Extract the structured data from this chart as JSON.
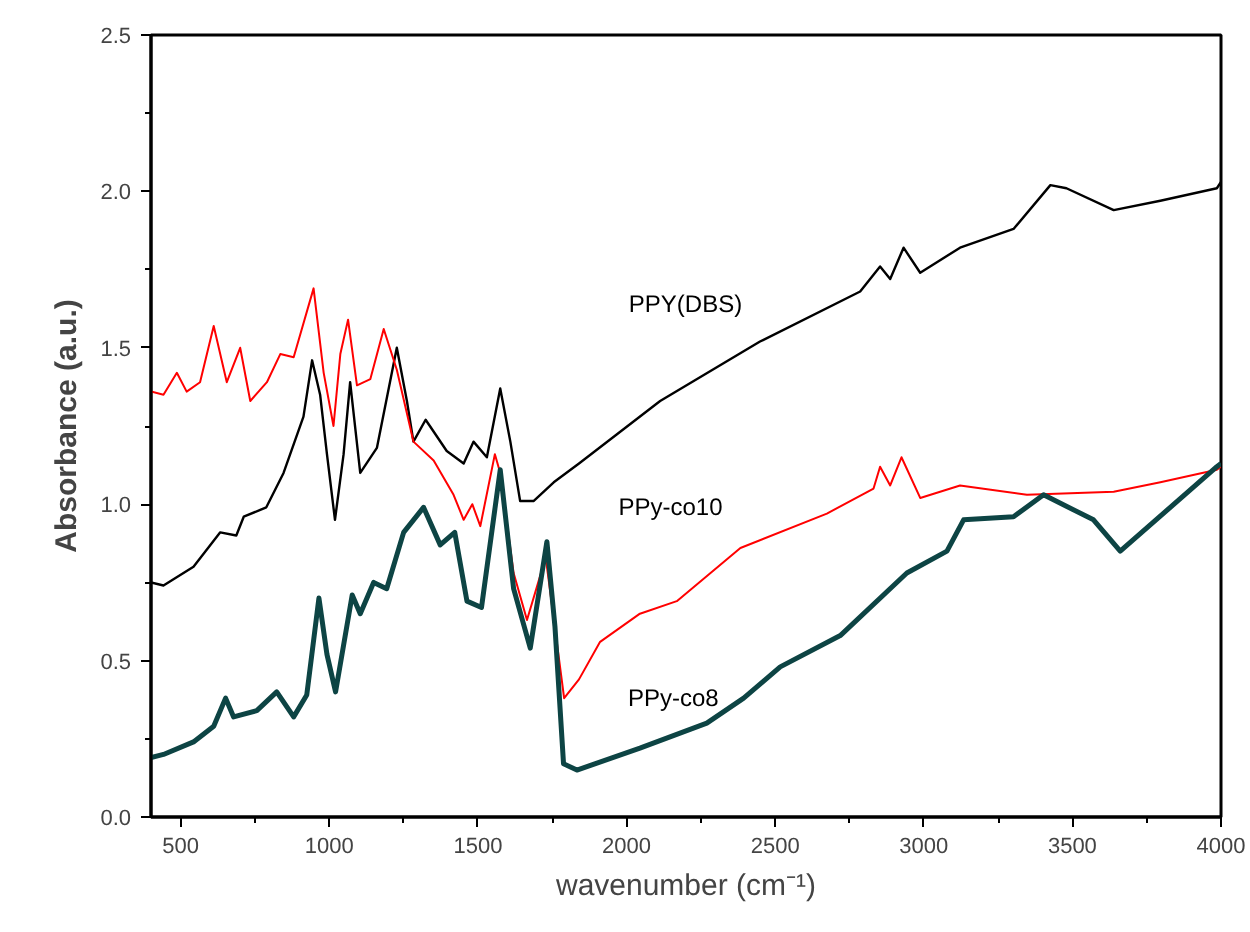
{
  "chart_data": {
    "type": "line",
    "xlabel": "wavenumber (cm⁻¹)",
    "ylabel": "Absorbance (a.u.)",
    "xlim": [
      400,
      4000
    ],
    "ylim": [
      0,
      2.5
    ],
    "xticks": [
      500,
      1000,
      1500,
      2000,
      2500,
      3000,
      3500,
      4000
    ],
    "yticks": [
      {
        "value": 0,
        "label": "0.0"
      },
      0.5,
      {
        "value": 1,
        "label": "1.0"
      },
      1.5,
      {
        "value": 2,
        "label": "2.0"
      },
      2.5
    ],
    "grid": false,
    "line_style": "solid",
    "marker": "none",
    "series": [
      {
        "name": "PPY(DBS)",
        "color": "#000000",
        "x": [
          400,
          442,
          543,
          633,
          687,
          712,
          788,
          846,
          913,
          942,
          969,
          992,
          1019,
          1048,
          1070,
          1104,
          1160,
          1227,
          1261,
          1283,
          1324,
          1395,
          1452,
          1485,
          1530,
          1575,
          1609,
          1642,
          1687,
          1755,
          1840,
          2113,
          2449,
          2786,
          2853,
          2887,
          2932,
          2988,
          3122,
          3302,
          3426,
          3480,
          3639,
          3796,
          3986,
          4000
        ],
        "values": [
          0.75,
          0.74,
          0.8,
          0.91,
          0.9,
          0.96,
          0.99,
          1.1,
          1.28,
          1.46,
          1.35,
          1.16,
          0.95,
          1.16,
          1.39,
          1.1,
          1.18,
          1.5,
          1.33,
          1.2,
          1.27,
          1.17,
          1.13,
          1.2,
          1.15,
          1.37,
          1.2,
          1.01,
          1.01,
          1.07,
          1.13,
          1.33,
          1.52,
          1.68,
          1.76,
          1.72,
          1.82,
          1.74,
          1.82,
          1.88,
          2.02,
          2.01,
          1.94,
          1.97,
          2.01,
          2.03
        ]
      },
      {
        "name": "PPy-co10",
        "color": "#ff0000",
        "x": [
          400,
          442,
          487,
          520,
          565,
          611,
          655,
          700,
          734,
          790,
          835,
          880,
          947,
          981,
          1014,
          1037,
          1063,
          1093,
          1138,
          1183,
          1227,
          1283,
          1351,
          1418,
          1452,
          1481,
          1508,
          1557,
          1575,
          1620,
          1665,
          1728,
          1790,
          1840,
          1911,
          2045,
          2169,
          2383,
          2674,
          2831,
          2853,
          2887,
          2925,
          2988,
          3122,
          3347,
          3639,
          3796,
          3986,
          4000
        ],
        "values": [
          1.36,
          1.35,
          1.42,
          1.36,
          1.39,
          1.57,
          1.39,
          1.5,
          1.33,
          1.39,
          1.48,
          1.47,
          1.69,
          1.42,
          1.25,
          1.48,
          1.59,
          1.38,
          1.4,
          1.56,
          1.43,
          1.2,
          1.14,
          1.03,
          0.95,
          1.0,
          0.93,
          1.16,
          1.1,
          0.78,
          0.63,
          0.83,
          0.38,
          0.44,
          0.56,
          0.65,
          0.69,
          0.86,
          0.97,
          1.05,
          1.12,
          1.06,
          1.15,
          1.02,
          1.06,
          1.03,
          1.04,
          1.07,
          1.11,
          1.12
        ]
      },
      {
        "name": "PPy-co8",
        "color": "#0d4444",
        "x": [
          400,
          442,
          543,
          611,
          651,
          678,
          756,
          823,
          880,
          924,
          965,
          992,
          1021,
          1077,
          1104,
          1149,
          1193,
          1250,
          1317,
          1373,
          1422,
          1463,
          1512,
          1575,
          1620,
          1676,
          1732,
          1759,
          1788,
          1833,
          2045,
          2270,
          2394,
          2517,
          2719,
          2943,
          3078,
          3134,
          3302,
          3403,
          3571,
          3661,
          3986,
          4000
        ],
        "values": [
          0.19,
          0.2,
          0.24,
          0.29,
          0.38,
          0.32,
          0.34,
          0.4,
          0.32,
          0.39,
          0.7,
          0.52,
          0.4,
          0.71,
          0.65,
          0.75,
          0.73,
          0.91,
          0.99,
          0.87,
          0.91,
          0.69,
          0.67,
          1.11,
          0.73,
          0.54,
          0.88,
          0.61,
          0.17,
          0.15,
          0.22,
          0.3,
          0.38,
          0.48,
          0.58,
          0.78,
          0.85,
          0.95,
          0.96,
          1.03,
          0.95,
          0.85,
          1.12,
          1.13
        ]
      }
    ]
  }
}
